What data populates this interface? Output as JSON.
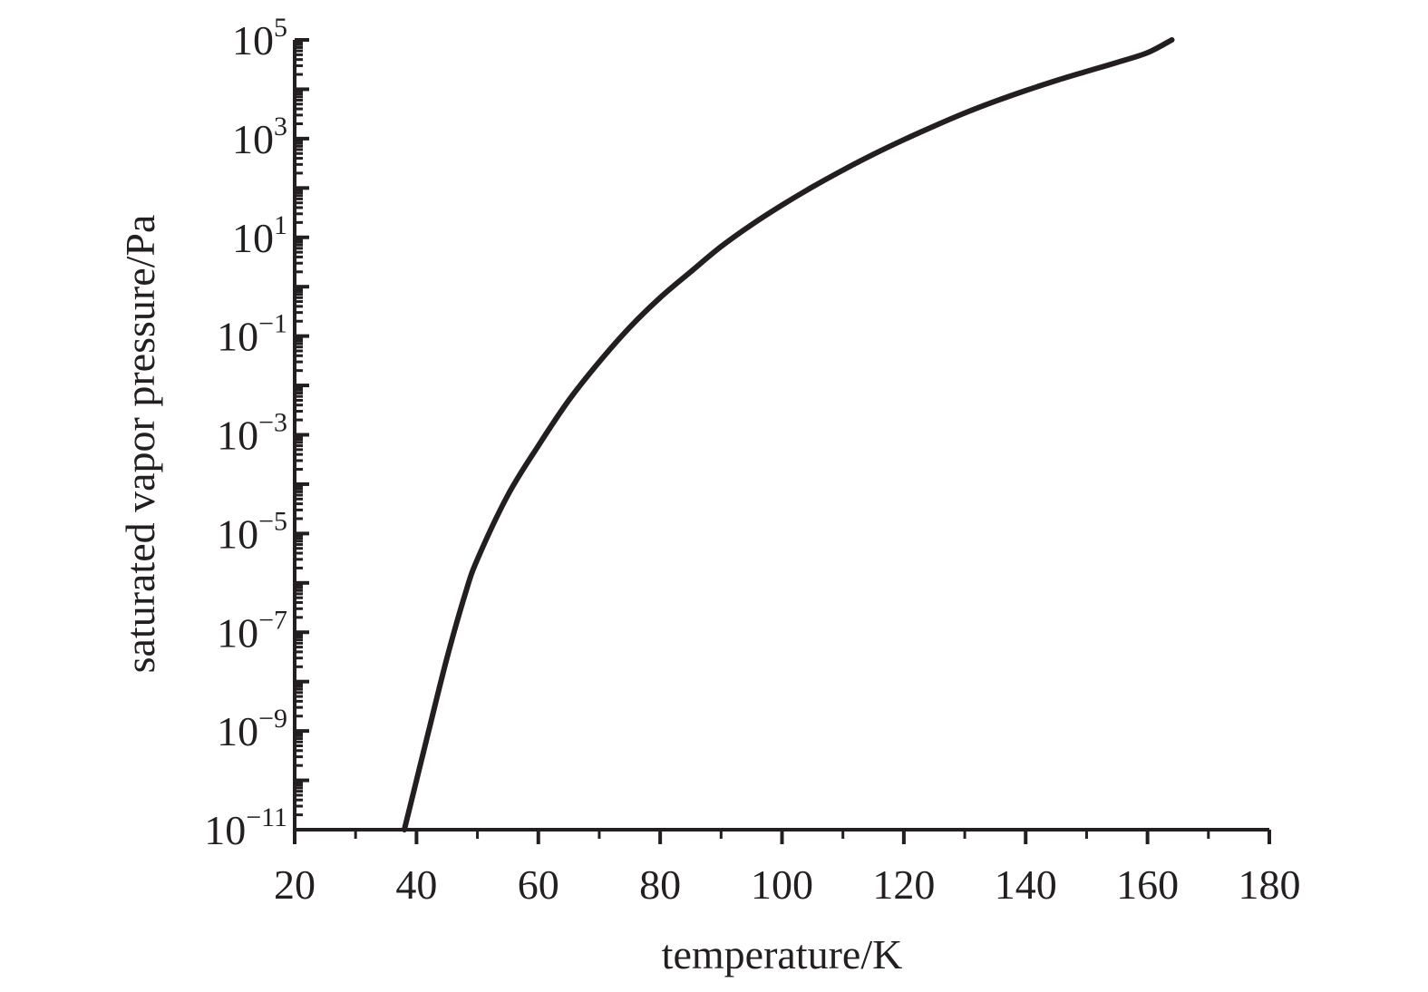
{
  "chart_data": {
    "type": "line",
    "xlabel": "temperature/K",
    "ylabel": "saturated vapor pressure/Pa",
    "xlim": [
      20,
      180
    ],
    "ylim_log10": [
      -11,
      5
    ],
    "yscale": "log",
    "grid": false,
    "x_ticks": [
      20,
      40,
      60,
      80,
      100,
      120,
      140,
      160,
      180
    ],
    "y_ticks": [
      {
        "base": "10",
        "exp": "5"
      },
      {
        "base": "10",
        "exp": "3"
      },
      {
        "base": "10",
        "exp": "1"
      },
      {
        "base": "10",
        "exp": "−1"
      },
      {
        "base": "10",
        "exp": "−3"
      },
      {
        "base": "10",
        "exp": "−5"
      },
      {
        "base": "10",
        "exp": "−7"
      },
      {
        "base": "10",
        "exp": "−9"
      },
      {
        "base": "10",
        "exp": "−11"
      }
    ],
    "series": [
      {
        "x": [
          38,
          40,
          42,
          45,
          48,
          50,
          55,
          60,
          65,
          70,
          75,
          80,
          85,
          90,
          95,
          100,
          105,
          110,
          115,
          120,
          125,
          130,
          135,
          140,
          145,
          150,
          155,
          160,
          164
        ],
        "y": [
          1e-11,
          1e-10,
          1e-09,
          3e-08,
          6e-07,
          3e-06,
          6e-05,
          0.0006,
          0.005,
          0.03,
          0.15,
          0.6,
          2,
          6.5,
          18,
          45,
          105,
          230,
          480,
          950,
          1800,
          3300,
          5700,
          9400,
          15000,
          23000,
          35000,
          55000,
          100000
        ]
      }
    ]
  }
}
